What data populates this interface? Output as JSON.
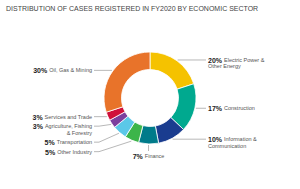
{
  "chart_data": {
    "type": "donut",
    "title": "DISTRIBUTION OF CASES REGISTERED IN FY2020 BY ECONOMIC SECTOR",
    "categories": [
      "Electric Power & Other Energy",
      "Construction",
      "Information & Communication",
      "Finance",
      "Other Industry",
      "Transportation",
      "Agriculture, Fishing & Forestry",
      "Services and Trade",
      "Oil, Gas & Mining"
    ],
    "values": [
      20,
      17,
      10,
      7,
      5,
      5,
      3,
      3,
      30
    ],
    "value_labels": [
      "20%",
      "17%",
      "10%",
      "7%",
      "5%",
      "5%",
      "3%",
      "3%",
      "30%"
    ],
    "colors": [
      "#F5C200",
      "#00A98F",
      "#1A3C8F",
      "#007B8A",
      "#3CB54A",
      "#5BC8E8",
      "#7B3F9E",
      "#D0103A",
      "#E8732A"
    ],
    "data_labels": true
  }
}
